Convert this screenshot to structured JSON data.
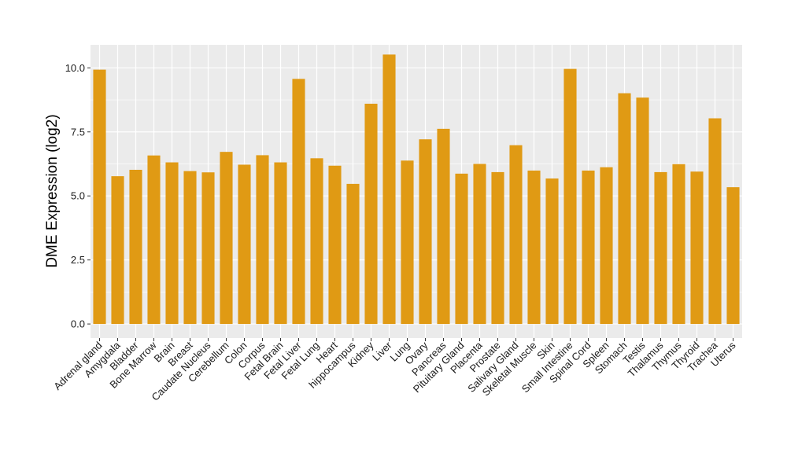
{
  "colors": {
    "bar": "#E09A14",
    "panel": "#EBEBEB",
    "grid": "#FFFFFF",
    "tick": "#333333"
  },
  "chart_data": {
    "type": "bar",
    "ylabel": "DME Expression (log2)",
    "xlabel": "",
    "ylim": [
      -0.55,
      10.9
    ],
    "yticks": [
      0,
      2.5,
      5,
      7.5,
      10
    ],
    "ytick_labels": [
      "0.0",
      "2.5",
      "5.0",
      "7.5",
      "10.0"
    ],
    "grid": true,
    "categories": [
      "Adrenal gland",
      "Amygdala",
      "Bladder",
      "Bone Marrow",
      "Brain",
      "Breast",
      "Caudate Nucleus",
      "Cerebellum",
      "Colon",
      "Corpus",
      "Fetal Brain",
      "Fetal Liver",
      "Fetal Lung",
      "Heart",
      "hippocampus",
      "Kidney",
      "Liver",
      "Lung",
      "Ovary",
      "Pancreas",
      "Pituitary Gland",
      "Placenta",
      "Prostate",
      "Salivary Gland",
      "Skeletal Muscle",
      "Skin",
      "Small Intestine",
      "Spinal Cord",
      "Spleen",
      "Stomach",
      "Testis",
      "Thalamus",
      "Thymus",
      "Thyroid",
      "Trachea",
      "Uterus"
    ],
    "values": [
      9.93,
      5.77,
      6.02,
      6.58,
      6.31,
      5.97,
      5.92,
      6.72,
      6.22,
      6.59,
      6.31,
      9.57,
      6.47,
      6.18,
      5.47,
      8.6,
      10.52,
      6.38,
      7.21,
      7.62,
      5.87,
      6.25,
      5.93,
      6.98,
      5.99,
      5.68,
      9.96,
      5.99,
      6.12,
      9.01,
      8.84,
      5.93,
      6.24,
      5.95,
      8.03,
      5.34
    ]
  }
}
